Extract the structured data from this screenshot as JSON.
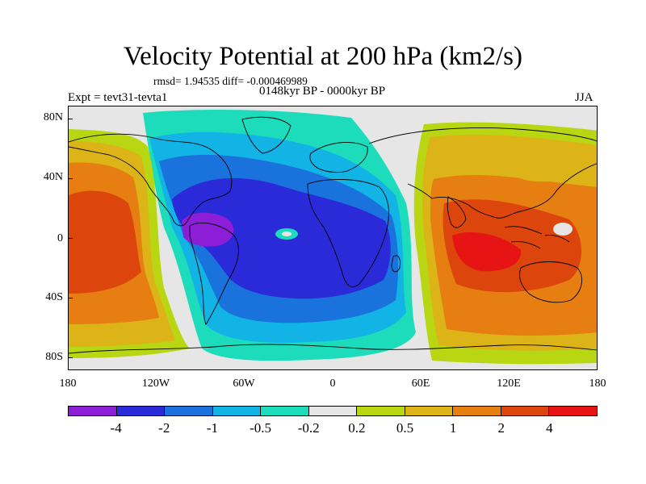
{
  "header": {
    "title": "Velocity Potential at 200 hPa (km2/s)",
    "stats": "rmsd= 1.94535 diff= -0.000469989",
    "period": "0148kyr BP - 0000kyr BP",
    "experiment": "Expt = tevt31-tevta1",
    "season": "JJA"
  },
  "axes": {
    "y_labels": [
      "80N",
      "40N",
      "0",
      "40S",
      "80S"
    ],
    "x_labels": [
      "180",
      "120W",
      "60W",
      "0",
      "60E",
      "120E",
      "180"
    ]
  },
  "colorbar": {
    "colors": [
      "#8c1ed8",
      "#2a2ad8",
      "#1a72dc",
      "#12b4e6",
      "#1cdcbc",
      "#e6e6e6",
      "#b8d612",
      "#dcb418",
      "#e67e12",
      "#dc460c",
      "#e61414"
    ],
    "labels": [
      "-4",
      "-2",
      "-1",
      "-0.5",
      "-0.2",
      "0.2",
      "0.5",
      "1",
      "2",
      "4"
    ]
  }
}
